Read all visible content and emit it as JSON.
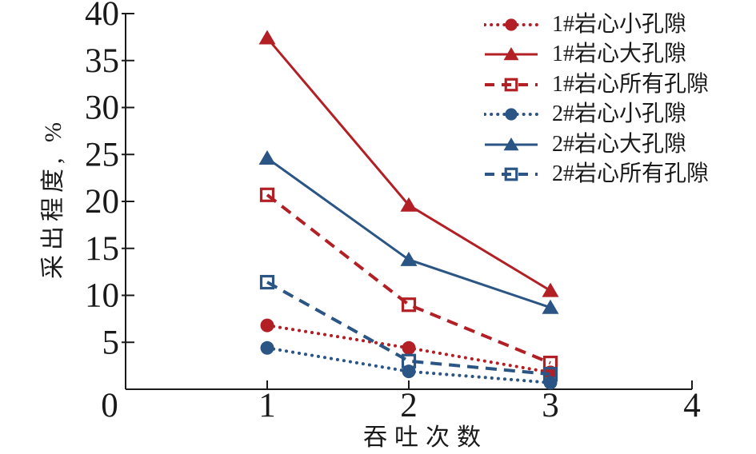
{
  "chart_data": {
    "type": "line",
    "title": "",
    "xlabel": "吞吐次数",
    "ylabel": "采出程度, %",
    "xlim": [
      0,
      4
    ],
    "ylim": [
      0,
      40
    ],
    "xticks": [
      0,
      1,
      2,
      3,
      4
    ],
    "yticks": [
      5,
      10,
      15,
      20,
      25,
      30,
      35,
      40
    ],
    "grid": false,
    "legend_position": "top-right",
    "axis_color": "#1a1a1a",
    "x": [
      1,
      2,
      3
    ],
    "series": [
      {
        "name": "1#岩心小孔隙",
        "color": "#b22026",
        "line_style": "dotted",
        "marker": "circle-filled",
        "values": [
          6.8,
          4.4,
          1.8
        ]
      },
      {
        "name": "1#岩心大孔隙",
        "color": "#b22026",
        "line_style": "solid",
        "marker": "triangle-filled",
        "values": [
          37.4,
          19.6,
          10.5
        ]
      },
      {
        "name": "1#岩心所有孔隙",
        "color": "#b22026",
        "line_style": "dashed",
        "marker": "square-open",
        "values": [
          20.7,
          9.0,
          2.8
        ]
      },
      {
        "name": "2#岩心小孔隙",
        "color": "#2a5584",
        "line_style": "dotted",
        "marker": "circle-filled",
        "values": [
          4.4,
          1.9,
          0.7
        ]
      },
      {
        "name": "2#岩心大孔隙",
        "color": "#2a5584",
        "line_style": "solid",
        "marker": "triangle-filled",
        "values": [
          24.6,
          13.8,
          8.7
        ]
      },
      {
        "name": "2#岩心所有孔隙",
        "color": "#2a5584",
        "line_style": "dashed",
        "marker": "square-open",
        "values": [
          11.4,
          3.0,
          1.6
        ]
      }
    ]
  }
}
